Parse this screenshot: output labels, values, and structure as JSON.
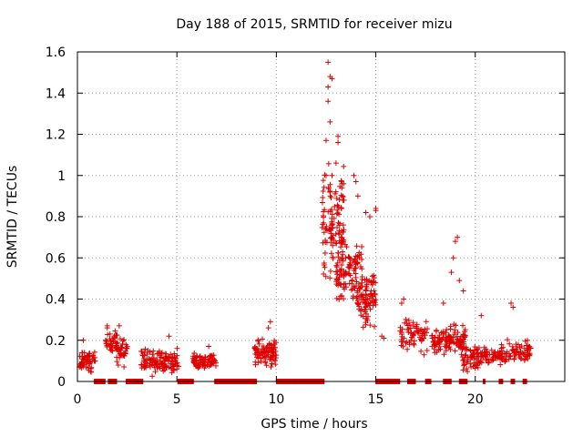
{
  "chart_data": {
    "type": "scatter",
    "title": "Day 188 of 2015, SRMTID for receiver mizu",
    "xlabel": "GPS time / hours",
    "ylabel": "SRMTID / TECUs",
    "xlim": [
      0,
      24.5
    ],
    "ylim": [
      0,
      1.6
    ],
    "x_ticks": [
      0,
      5,
      10,
      15,
      20
    ],
    "x_tick_labels": [
      "0",
      "5",
      "10",
      "15",
      "20"
    ],
    "y_ticks": [
      0,
      0.2,
      0.4,
      0.6,
      0.8,
      1.0,
      1.2,
      1.4,
      1.6
    ],
    "y_tick_labels": [
      "0",
      "0.2",
      "0.4",
      "0.6",
      "0.8",
      "1",
      "1.2",
      "1.4",
      "1.6"
    ],
    "grid": true,
    "marker": "+",
    "series": [
      {
        "name": "SRMTID",
        "color": "#dd0000",
        "clusters": [
          {
            "x": [
              0.1,
              0.9
            ],
            "y_mean": 0.1,
            "y_spread": 0.07,
            "n": 60
          },
          {
            "x": [
              1.4,
              2.0
            ],
            "y_mean": 0.18,
            "y_spread": 0.08,
            "n": 40
          },
          {
            "x": [
              1.9,
              2.5
            ],
            "y_mean": 0.15,
            "y_spread": 0.09,
            "n": 40
          },
          {
            "x": [
              3.2,
              5.1
            ],
            "y_mean": 0.1,
            "y_spread": 0.08,
            "n": 130
          },
          {
            "x": [
              5.8,
              7.0
            ],
            "y_mean": 0.1,
            "y_spread": 0.05,
            "n": 80
          },
          {
            "x": [
              8.9,
              10.0
            ],
            "y_mean": 0.14,
            "y_spread": 0.09,
            "n": 90
          },
          {
            "x": [
              12.3,
              13.4
            ],
            "y_mean": 0.75,
            "y_spread": 0.35,
            "n": 120
          },
          {
            "x": [
              13.0,
              14.3
            ],
            "y_mean": 0.55,
            "y_spread": 0.25,
            "n": 110
          },
          {
            "x": [
              14.0,
              15.0
            ],
            "y_mean": 0.4,
            "y_spread": 0.18,
            "n": 90
          },
          {
            "x": [
              16.2,
              17.6
            ],
            "y_mean": 0.22,
            "y_spread": 0.1,
            "n": 70
          },
          {
            "x": [
              17.8,
              19.5
            ],
            "y_mean": 0.2,
            "y_spread": 0.1,
            "n": 120
          },
          {
            "x": [
              19.3,
              20.6
            ],
            "y_mean": 0.12,
            "y_spread": 0.08,
            "n": 70
          },
          {
            "x": [
              20.4,
              21.6
            ],
            "y_mean": 0.13,
            "y_spread": 0.06,
            "n": 60
          },
          {
            "x": [
              21.6,
              22.8
            ],
            "y_mean": 0.15,
            "y_spread": 0.09,
            "n": 60
          }
        ],
        "highlights": [
          {
            "x": 12.6,
            "y": 1.55
          },
          {
            "x": 12.7,
            "y": 1.48
          },
          {
            "x": 12.8,
            "y": 1.47
          },
          {
            "x": 12.6,
            "y": 1.43
          },
          {
            "x": 12.6,
            "y": 1.36
          },
          {
            "x": 12.7,
            "y": 1.26
          },
          {
            "x": 13.1,
            "y": 1.19
          },
          {
            "x": 13.1,
            "y": 1.16
          },
          {
            "x": 13.0,
            "y": 1.06
          },
          {
            "x": 12.5,
            "y": 1.17
          },
          {
            "x": 12.5,
            "y": 1.0
          },
          {
            "x": 12.8,
            "y": 1.0
          },
          {
            "x": 13.3,
            "y": 0.96
          },
          {
            "x": 13.4,
            "y": 0.88
          },
          {
            "x": 13.9,
            "y": 1.0
          },
          {
            "x": 14.0,
            "y": 0.97
          },
          {
            "x": 14.1,
            "y": 0.9
          },
          {
            "x": 14.5,
            "y": 0.82
          },
          {
            "x": 15.0,
            "y": 0.84
          },
          {
            "x": 15.0,
            "y": 0.83
          },
          {
            "x": 14.7,
            "y": 0.8
          },
          {
            "x": 19.0,
            "y": 0.68
          },
          {
            "x": 19.1,
            "y": 0.7
          },
          {
            "x": 18.9,
            "y": 0.6
          },
          {
            "x": 19.2,
            "y": 0.49
          },
          {
            "x": 18.8,
            "y": 0.53
          },
          {
            "x": 19.4,
            "y": 0.44
          },
          {
            "x": 16.4,
            "y": 0.4
          },
          {
            "x": 16.3,
            "y": 0.38
          },
          {
            "x": 21.8,
            "y": 0.38
          },
          {
            "x": 21.9,
            "y": 0.36
          },
          {
            "x": 22.6,
            "y": 0.16
          },
          {
            "x": 22.7,
            "y": 0.17
          },
          {
            "x": 15.3,
            "y": 0.22
          },
          {
            "x": 15.4,
            "y": 0.21
          },
          {
            "x": 9.7,
            "y": 0.29
          },
          {
            "x": 9.6,
            "y": 0.26
          },
          {
            "x": 1.5,
            "y": 0.27
          },
          {
            "x": 1.5,
            "y": 0.26
          },
          {
            "x": 0.3,
            "y": 0.2
          },
          {
            "x": 2.1,
            "y": 0.27
          },
          {
            "x": 4.6,
            "y": 0.22
          },
          {
            "x": 6.6,
            "y": 0.17
          },
          {
            "x": 20.3,
            "y": 0.32
          },
          {
            "x": 18.4,
            "y": 0.38
          }
        ],
        "zero_segments": [
          [
            0.85,
            1.4
          ],
          [
            1.55,
            2.0
          ],
          [
            2.45,
            3.3
          ],
          [
            5.05,
            5.85
          ],
          [
            6.9,
            9.0
          ],
          [
            10.0,
            12.4
          ],
          [
            15.0,
            16.2
          ],
          [
            16.6,
            17.0
          ],
          [
            17.5,
            17.8
          ],
          [
            18.4,
            18.8
          ],
          [
            19.2,
            19.6
          ],
          [
            20.4,
            20.5
          ],
          [
            21.2,
            21.4
          ],
          [
            21.8,
            22.0
          ],
          [
            22.4,
            22.6
          ]
        ]
      }
    ]
  }
}
